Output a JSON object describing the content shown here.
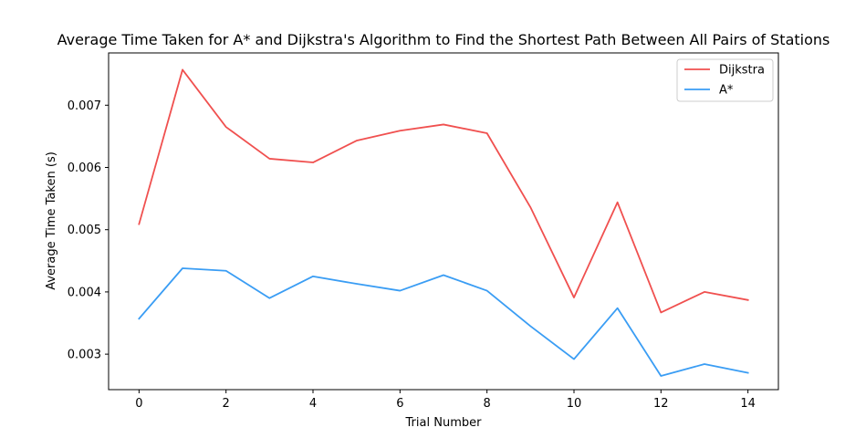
{
  "chart_data": {
    "type": "line",
    "title": "Average Time Taken for A* and Dijkstra's Algorithm to Find the Shortest Path Between All Pairs of Stations",
    "xlabel": "Trial Number",
    "ylabel": "Average Time Taken (s)",
    "x": [
      0,
      1,
      2,
      3,
      4,
      5,
      6,
      7,
      8,
      9,
      10,
      11,
      12,
      13,
      14
    ],
    "xticks": [
      0,
      2,
      4,
      6,
      8,
      10,
      12,
      14
    ],
    "xtick_labels": [
      "0",
      "2",
      "4",
      "6",
      "8",
      "10",
      "12",
      "14"
    ],
    "yticks": [
      0.003,
      0.004,
      0.005,
      0.006,
      0.007
    ],
    "ytick_labels": [
      "0.003",
      "0.004",
      "0.005",
      "0.006",
      "0.007"
    ],
    "xlim": [
      -0.7,
      14.7
    ],
    "ylim": [
      0.00243,
      0.00784
    ],
    "grid": false,
    "legend_position": "top-right",
    "series": [
      {
        "name": "Dijkstra",
        "color": "#f0504f",
        "values": [
          0.00509,
          0.00757,
          0.00665,
          0.00614,
          0.00608,
          0.00643,
          0.00659,
          0.00669,
          0.00655,
          0.00536,
          0.00391,
          0.00544,
          0.00367,
          0.004,
          0.00387
        ]
      },
      {
        "name": "A*",
        "color": "#3a9df4",
        "values": [
          0.00357,
          0.00438,
          0.00434,
          0.0039,
          0.00425,
          0.00413,
          0.00402,
          0.00427,
          0.00402,
          0.00345,
          0.00292,
          0.00374,
          0.00265,
          0.00284,
          0.0027
        ]
      }
    ]
  }
}
